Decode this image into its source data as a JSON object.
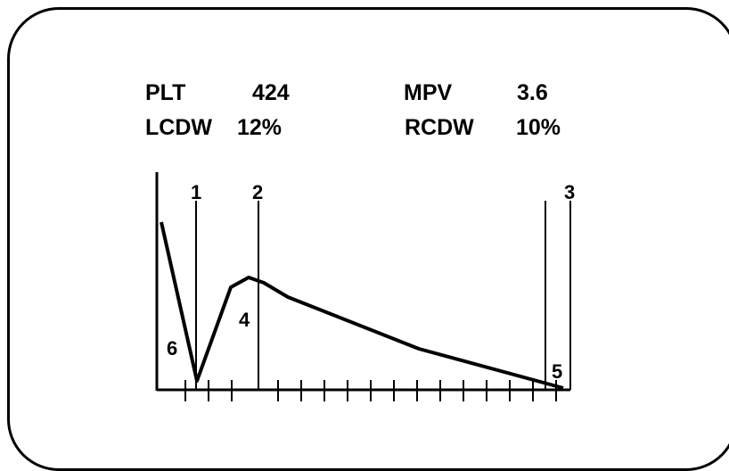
{
  "readouts": {
    "plt_label": "PLT",
    "plt_value": "424",
    "mpv_label": "MPV",
    "mpv_value": "3.6",
    "lcdw_label": "LCDW",
    "lcdw_value": "12%",
    "rcdw_label": "RCDW",
    "rcdw_value": "10%"
  },
  "markers": {
    "m1": "1",
    "m2": "2",
    "m3": "3",
    "m4": "4",
    "m5": "5",
    "m6": "6"
  },
  "colors": {
    "ink": "#000000",
    "background": "#ffffff"
  }
}
